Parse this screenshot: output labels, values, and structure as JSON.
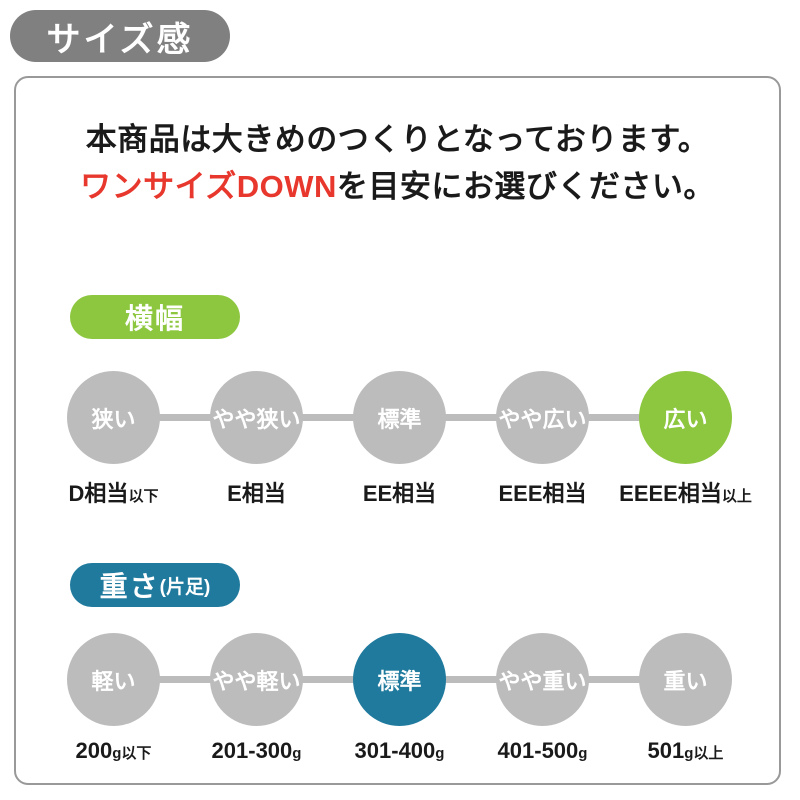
{
  "title": "サイズ感",
  "notice": {
    "line1": "本商品は大きめのつくりとなっております。",
    "line2_highlight": "ワンサイズDOWN",
    "line2_rest": "を目安にお選びください。"
  },
  "colors": {
    "green": "#8dc63f",
    "teal": "#1f7a9e",
    "red": "#e8382d",
    "badge_gray": "#808080",
    "circle_gray": "#bcbcbc"
  },
  "sections": [
    {
      "badge_label": "横幅",
      "badge_suffix": "",
      "active_index": 4,
      "steps": [
        {
          "circle": "狭い",
          "label_main": "D相当",
          "label_small": "以下"
        },
        {
          "circle": "やや狭い",
          "label_main": "E相当",
          "label_small": ""
        },
        {
          "circle": "標準",
          "label_main": "EE相当",
          "label_small": ""
        },
        {
          "circle": "やや広い",
          "label_main": "EEE相当",
          "label_small": ""
        },
        {
          "circle": "広い",
          "label_main": "EEEE相当",
          "label_small": "以上"
        }
      ]
    },
    {
      "badge_label": "重さ",
      "badge_suffix": "(片足)",
      "active_index": 2,
      "steps": [
        {
          "circle": "軽い",
          "label_main": "200",
          "label_small": "g以下"
        },
        {
          "circle": "やや軽い",
          "label_main": "201-300",
          "label_small": "g"
        },
        {
          "circle": "標準",
          "label_main": "301-400",
          "label_small": "g"
        },
        {
          "circle": "やや重い",
          "label_main": "401-500",
          "label_small": "g"
        },
        {
          "circle": "重い",
          "label_main": "501",
          "label_small": "g以上"
        }
      ]
    }
  ]
}
